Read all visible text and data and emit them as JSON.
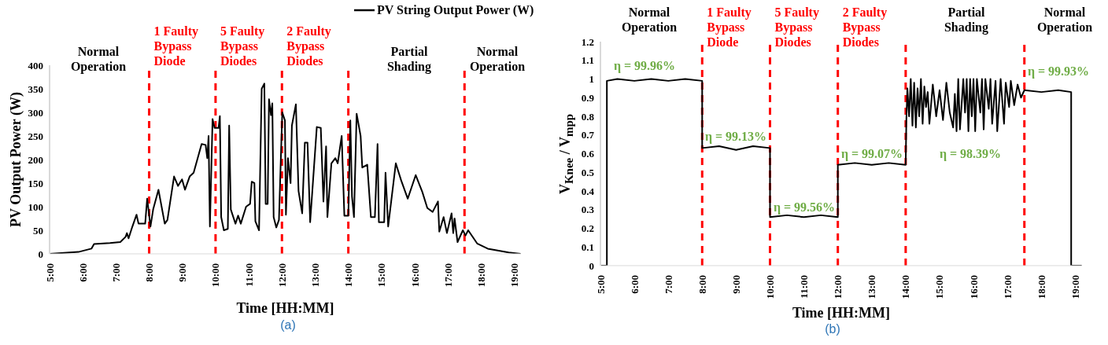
{
  "chart_data": [
    {
      "type": "line",
      "xlabel": "Time [HH:MM]",
      "ylabel": "PV Output Power (W)",
      "legend": "top right",
      "x": [
        5.0,
        5.87,
        6.26,
        6.34,
        6.82,
        7.13,
        7.29,
        7.33,
        7.38,
        7.49,
        7.62,
        7.68,
        7.88,
        7.94,
        8.04,
        8.12,
        8.28,
        8.47,
        8.55,
        8.75,
        8.87,
        8.99,
        9.08,
        9.22,
        9.34,
        9.58,
        9.7,
        9.75,
        9.79,
        9.83,
        9.91,
        9.97,
        10.09,
        10.13,
        10.17,
        10.25,
        10.37,
        10.41,
        10.46,
        10.6,
        10.68,
        10.76,
        10.92,
        11.04,
        11.09,
        11.17,
        11.2,
        11.31,
        11.39,
        11.47,
        11.51,
        11.57,
        11.61,
        11.67,
        11.71,
        11.75,
        11.83,
        11.91,
        12.01,
        12.09,
        12.12,
        12.18,
        12.26,
        12.3,
        12.42,
        12.5,
        12.61,
        12.69,
        12.77,
        12.85,
        13.05,
        13.17,
        13.25,
        13.33,
        13.37,
        13.49,
        13.61,
        13.68,
        13.8,
        13.88,
        14.0,
        14.06,
        14.11,
        14.17,
        14.25,
        14.37,
        14.42,
        14.57,
        14.68,
        14.8,
        14.88,
        14.92,
        15.08,
        15.12,
        15.2,
        15.43,
        15.59,
        15.79,
        16.03,
        16.23,
        16.38,
        16.54,
        16.7,
        16.74,
        16.87,
        16.97,
        17.11,
        17.16,
        17.2,
        17.29,
        17.45,
        17.53,
        17.61,
        17.88,
        18.2,
        18.83,
        19.19
      ],
      "series": [
        {
          "name": "PV String Output Power (W)",
          "color": "#000000",
          "values": [
            0,
            4,
            11,
            21,
            23,
            25,
            36,
            44,
            33,
            57,
            83,
            64,
            64,
            117,
            58,
            94,
            136,
            64,
            72,
            164,
            144,
            158,
            136,
            164,
            172,
            233,
            231,
            203,
            250,
            58,
            286,
            267,
            267,
            292,
            78,
            50,
            53,
            272,
            94,
            64,
            81,
            64,
            100,
            106,
            153,
            150,
            69,
            50,
            350,
            361,
            106,
            106,
            328,
            294,
            319,
            78,
            56,
            72,
            300,
            283,
            83,
            203,
            150,
            272,
            317,
            133,
            86,
            236,
            236,
            67,
            269,
            267,
            111,
            228,
            78,
            192,
            203,
            192,
            250,
            81,
            81,
            283,
            122,
            78,
            297,
            250,
            183,
            189,
            78,
            78,
            233,
            67,
            67,
            172,
            58,
            192,
            156,
            117,
            167,
            131,
            97,
            89,
            111,
            47,
            78,
            44,
            86,
            44,
            75,
            25,
            50,
            39,
            50,
            22,
            11,
            3,
            0
          ]
        }
      ],
      "xlim": [
        5,
        19.2
      ],
      "xticks": [
        {
          "value": 5,
          "label": "5:00"
        },
        {
          "value": 6,
          "label": "6:00"
        },
        {
          "value": 7,
          "label": "7:00"
        },
        {
          "value": 8,
          "label": "8:00"
        },
        {
          "value": 9,
          "label": "9:00"
        },
        {
          "value": 10,
          "label": "10:00"
        },
        {
          "value": 11,
          "label": "11:00"
        },
        {
          "value": 12,
          "label": "12:00"
        },
        {
          "value": 13,
          "label": "13:00"
        },
        {
          "value": 14,
          "label": "14:00"
        },
        {
          "value": 15,
          "label": "15:00"
        },
        {
          "value": 16,
          "label": "16:00"
        },
        {
          "value": 17,
          "label": "17:00"
        },
        {
          "value": 18,
          "label": "18:00"
        },
        {
          "value": 19,
          "label": "19:00"
        }
      ],
      "ylim": [
        0,
        400
      ],
      "yticks": [
        0,
        50,
        100,
        150,
        200,
        250,
        300,
        350,
        400
      ],
      "ref_lines": [
        {
          "axis": "x",
          "value": 8,
          "label": "1 Faulty Bypass Diode",
          "color": "#ff0000",
          "line_style": "dashed"
        },
        {
          "axis": "x",
          "value": 10,
          "label": "5 Faulty Bypass Diodes",
          "color": "#ff0000",
          "line_style": "dashed"
        },
        {
          "axis": "x",
          "value": 12,
          "label": "2 Faulty Bypass Diodes",
          "color": "#ff0000",
          "line_style": "dashed"
        },
        {
          "axis": "x",
          "value": 14,
          "color": "#ff0000",
          "line_style": "dashed"
        },
        {
          "axis": "x",
          "value": 17.5,
          "color": "#ff0000",
          "line_style": "dashed"
        }
      ],
      "annotations": [
        "Normal Operation",
        "Partial Shading",
        "Normal Operation",
        "(a)"
      ]
    },
    {
      "type": "line",
      "xlabel": "Time [HH:MM]",
      "ylabel": "V$_{Knee}$ / V$_{mpp}$",
      "x": [
        5.0,
        5.19,
        5.19,
        5.5,
        6,
        6.5,
        7,
        7.5,
        8,
        8,
        8.5,
        9,
        9.5,
        10,
        10,
        10.5,
        11,
        11.5,
        12,
        12,
        12.5,
        13,
        13.5,
        14,
        14.02,
        14.05,
        14.1,
        14.15,
        14.2,
        14.25,
        14.3,
        14.35,
        14.4,
        14.45,
        14.5,
        14.55,
        14.6,
        14.65,
        14.7,
        14.8,
        14.9,
        15.0,
        15.1,
        15.2,
        15.3,
        15.4,
        15.45,
        15.5,
        15.55,
        15.6,
        15.7,
        15.75,
        15.8,
        15.85,
        15.9,
        15.95,
        16.0,
        16.05,
        16.1,
        16.2,
        16.25,
        16.3,
        16.35,
        16.45,
        16.5,
        16.55,
        16.65,
        16.7,
        16.8,
        16.9,
        16.95,
        17.05,
        17.1,
        17.2,
        17.3,
        17.4,
        17.5,
        18,
        18.5,
        18.88,
        18.88,
        19.19
      ],
      "series": [
        {
          "color": "#000000",
          "values": [
            0,
            0,
            0.99,
            1,
            0.99,
            1,
            0.99,
            1,
            0.99,
            0.63,
            0.64,
            0.62,
            0.64,
            0.63,
            0.26,
            0.27,
            0.26,
            0.27,
            0.26,
            0.54,
            0.55,
            0.54,
            0.55,
            0.54,
            0.78,
            0.95,
            0.8,
            1,
            0.75,
            0.98,
            0.74,
            0.95,
            0.8,
            1,
            0.76,
            0.96,
            0.85,
            0.93,
            0.76,
            0.97,
            0.8,
            0.94,
            0.78,
            0.98,
            0.82,
            0.74,
            0.92,
            0.72,
            1,
            0.73,
            1,
            0.82,
            1,
            0.72,
            1,
            0.8,
            1,
            0.72,
            1,
            0.82,
            1,
            0.73,
            1,
            0.84,
            1,
            0.76,
            0.99,
            0.72,
            1,
            0.76,
            0.98,
            0.85,
            0.99,
            0.86,
            0.97,
            0.9,
            0.94,
            0.93,
            0.94,
            0.93,
            0,
            0
          ]
        }
      ],
      "xlim": [
        5,
        19.2
      ],
      "xticks": [
        {
          "value": 5,
          "label": "5:00"
        },
        {
          "value": 6,
          "label": "6:00"
        },
        {
          "value": 7,
          "label": "7:00"
        },
        {
          "value": 8,
          "label": "8:00"
        },
        {
          "value": 9,
          "label": "9:00"
        },
        {
          "value": 10,
          "label": "10:00"
        },
        {
          "value": 11,
          "label": "11:00"
        },
        {
          "value": 12,
          "label": "12:00"
        },
        {
          "value": 13,
          "label": "13:00"
        },
        {
          "value": 14,
          "label": "14:00"
        },
        {
          "value": 15,
          "label": "15:00"
        },
        {
          "value": 16,
          "label": "16:00"
        },
        {
          "value": 17,
          "label": "17:00"
        },
        {
          "value": 18,
          "label": "18:00"
        },
        {
          "value": 19,
          "label": "19:00"
        }
      ],
      "ylim": [
        0,
        1.2
      ],
      "yticks": [
        0,
        0.1,
        0.2,
        0.3,
        0.4,
        0.5,
        0.6,
        0.7,
        0.8,
        0.9,
        1,
        1.1,
        1.2
      ],
      "ref_lines": [
        {
          "axis": "x",
          "value": 8,
          "label": "1 Faulty Bypass Diode",
          "color": "#ff0000",
          "line_style": "dashed"
        },
        {
          "axis": "x",
          "value": 10,
          "label": "5 Faulty Bypass Diodes",
          "color": "#ff0000",
          "line_style": "dashed"
        },
        {
          "axis": "x",
          "value": 12,
          "label": "2 Faulty Bypass Diodes",
          "color": "#ff0000",
          "line_style": "dashed"
        },
        {
          "axis": "x",
          "value": 14,
          "color": "#ff0000",
          "line_style": "dashed"
        },
        {
          "axis": "x",
          "value": 17.5,
          "color": "#ff0000",
          "line_style": "dashed"
        }
      ],
      "annotations": [
        "Normal Operation",
        "Partial Shading",
        "Normal Operation",
        "η = 99.96%",
        "η = 99.13%",
        "η = 99.56%",
        "η = 99.07%",
        "η = 98.39%",
        "η = 99.93%",
        "(b)"
      ]
    }
  ]
}
